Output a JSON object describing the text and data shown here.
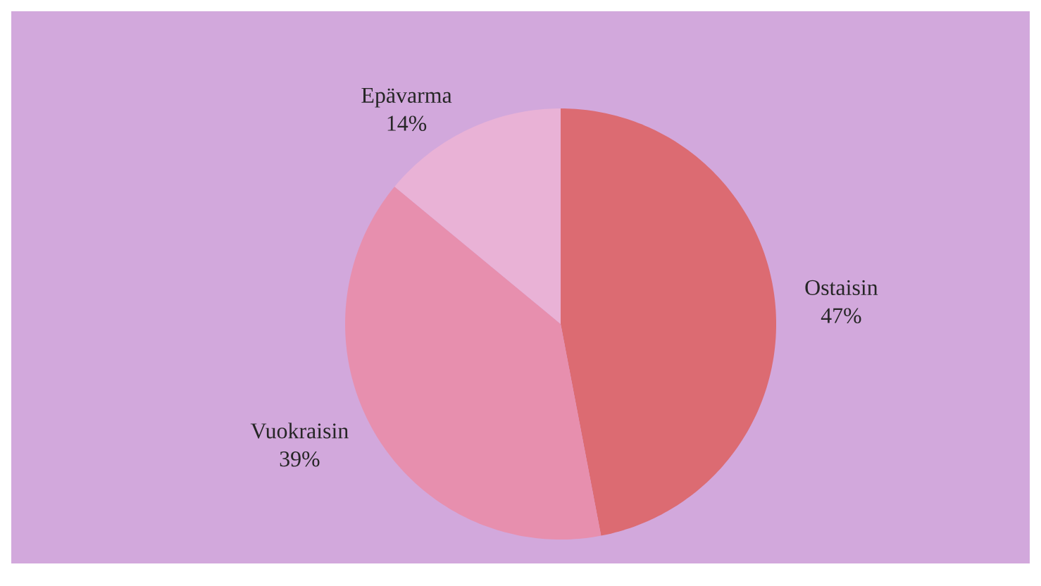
{
  "chart_data": {
    "type": "pie",
    "categories": [
      "Ostaisin",
      "Vuokraisin",
      "Epävarma"
    ],
    "values": [
      47,
      39,
      14
    ],
    "colors": [
      "#dc6b72",
      "#e78fae",
      "#e9b2d6"
    ],
    "value_labels": [
      "47%",
      "39%",
      "14%"
    ]
  }
}
